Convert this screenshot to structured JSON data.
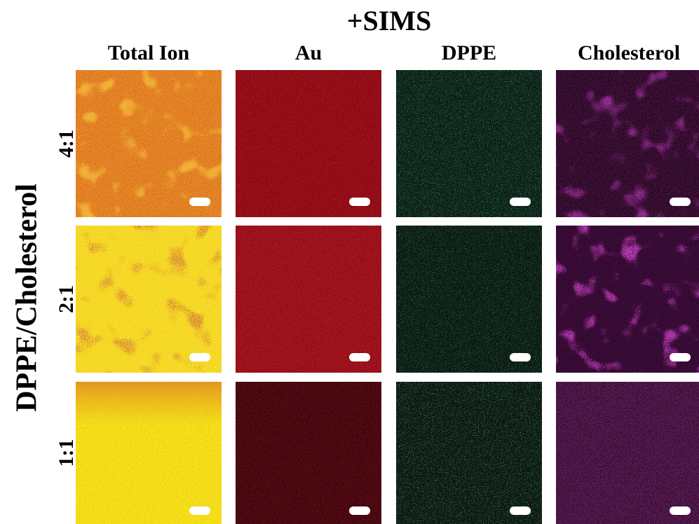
{
  "title": "+SIMS",
  "columns": [
    "Total Ion",
    "Au",
    "DPPE",
    "Cholesterol"
  ],
  "row_axis_label": "DPPE/Cholesterol",
  "rows": [
    "4:1",
    "2:1",
    "1:1"
  ]
}
